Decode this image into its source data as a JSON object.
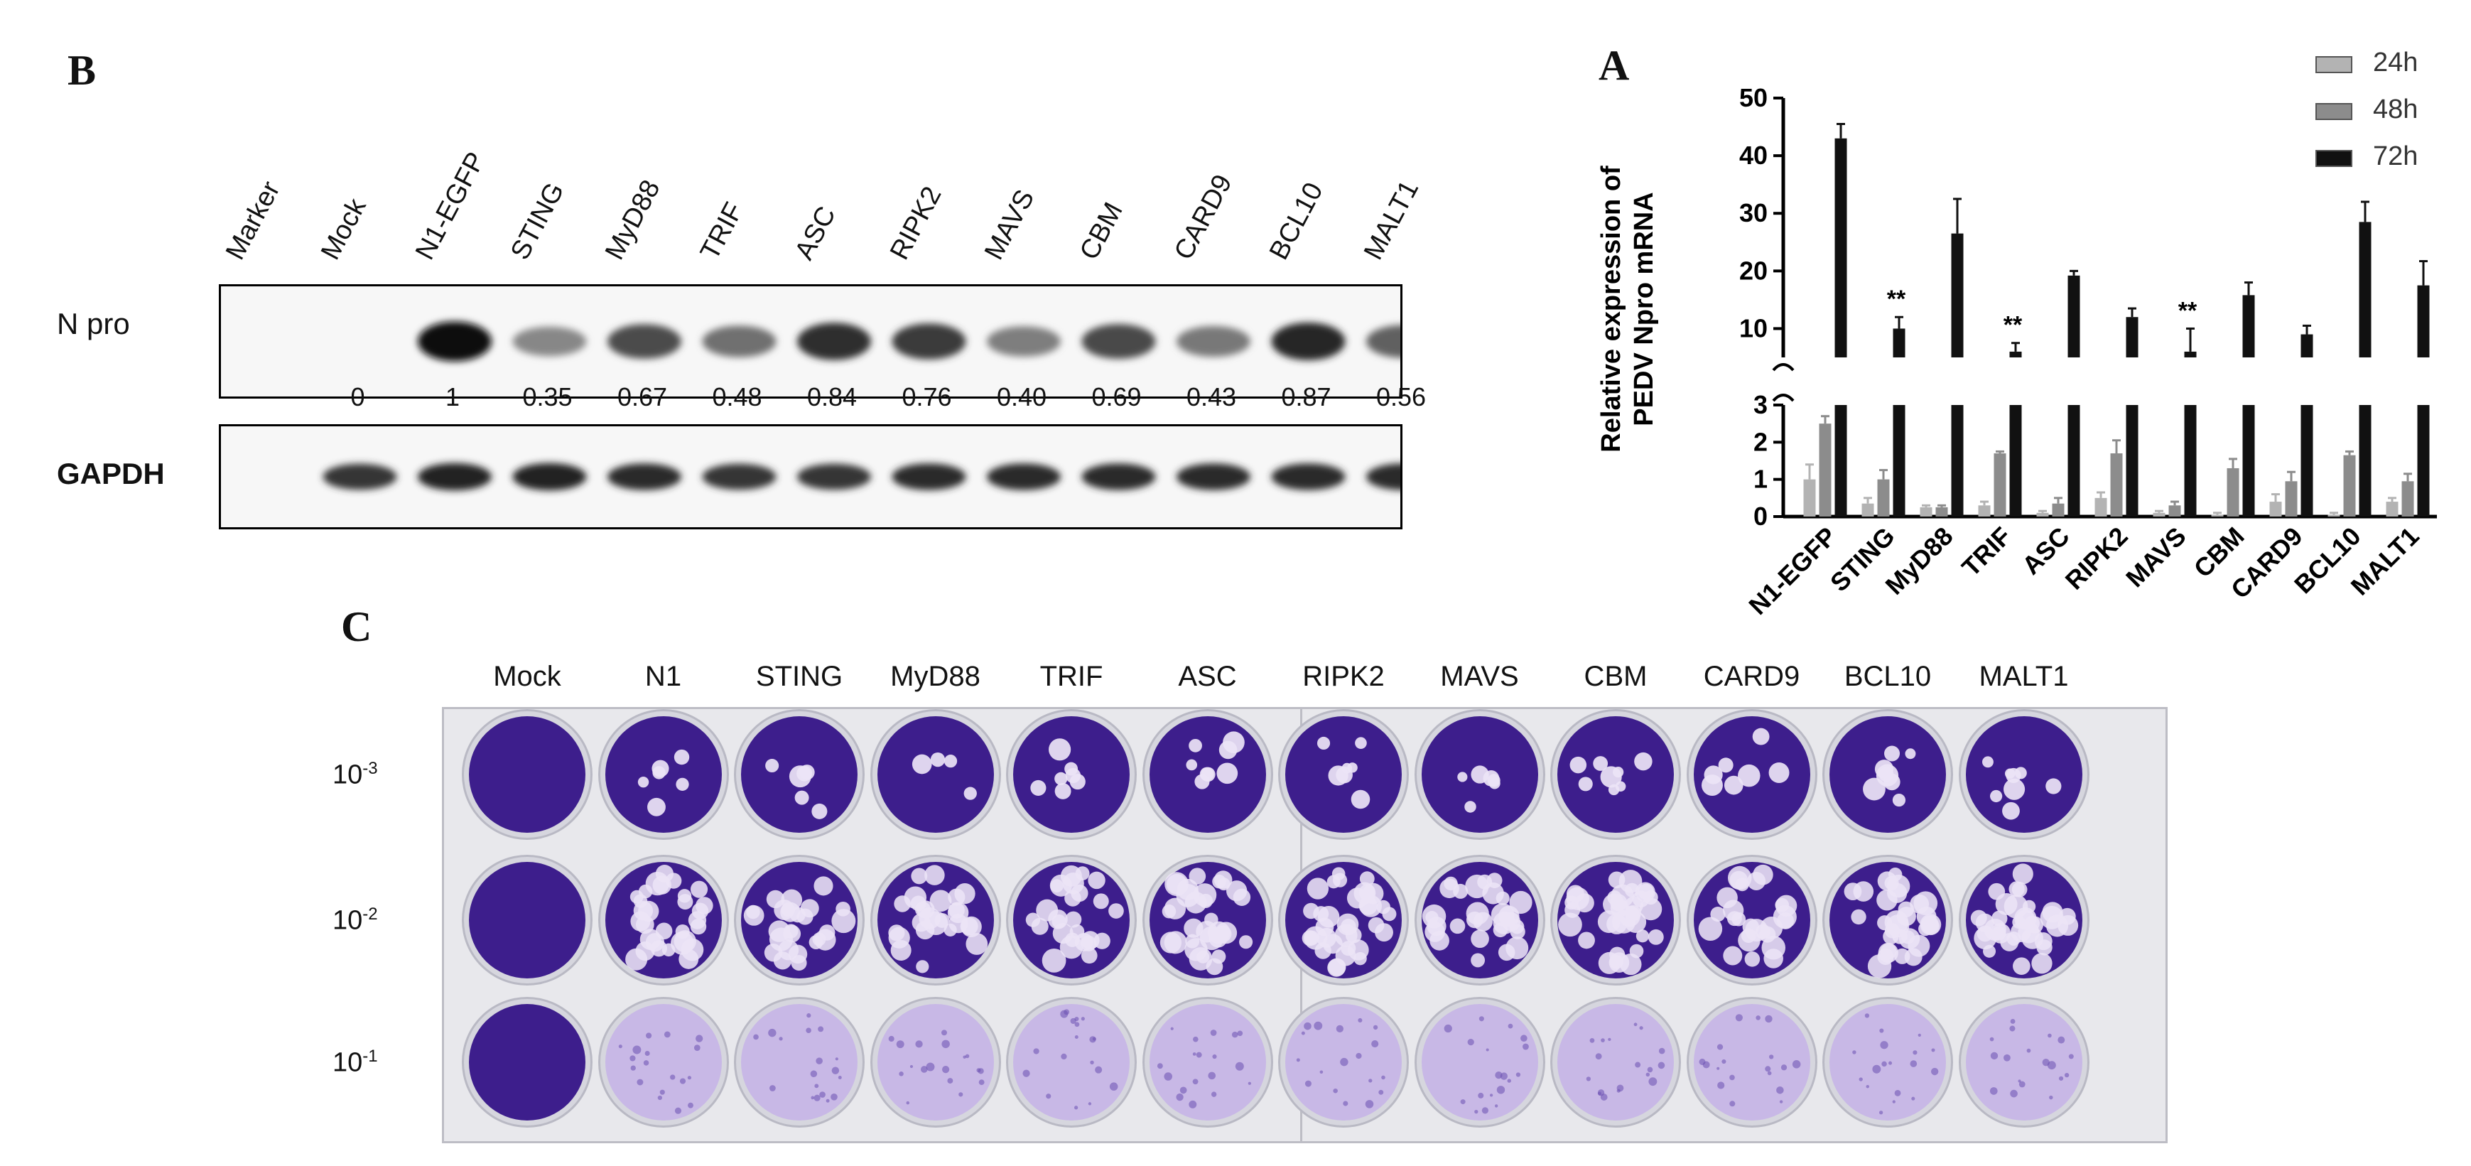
{
  "panel_b": {
    "letter": "B",
    "lanes": [
      "Marker",
      "Mock",
      "N1-EGFP",
      "STING",
      "MyD88",
      "TRIF",
      "ASC",
      "RIPK2",
      "MAVS",
      "CBM",
      "CARD9",
      "BCL10",
      "MALT1"
    ],
    "rows": [
      {
        "label": "N pro",
        "intensities": [
          0,
          0,
          1,
          0.35,
          0.67,
          0.48,
          0.84,
          0.76,
          0.4,
          0.69,
          0.43,
          0.87,
          0.56
        ]
      },
      {
        "label": "GAPDH",
        "intensities": [
          0,
          0.8,
          0.9,
          0.9,
          0.85,
          0.8,
          0.8,
          0.85,
          0.85,
          0.85,
          0.85,
          0.85,
          0.85
        ]
      }
    ],
    "quant": [
      "0",
      "1",
      "0.35",
      "0.67",
      "0.48",
      "0.84",
      "0.76",
      "0.40",
      "0.69",
      "0.43",
      "0.87",
      "0.56"
    ]
  },
  "panel_a": {
    "letter": "A",
    "chart_data": {
      "type": "bar",
      "ylabel_line1": "Relative expression of",
      "ylabel_line2": "PEDV Npro mRNA",
      "categories": [
        "N1-EGFP",
        "STING",
        "MyD88",
        "TRIF",
        "ASC",
        "RIPK2",
        "MAVS",
        "CBM",
        "CARD9",
        "BCL10",
        "MALT1"
      ],
      "series": [
        {
          "name": "24h",
          "color": "#b3b3b3",
          "values": [
            1.0,
            0.35,
            0.25,
            0.3,
            0.1,
            0.5,
            0.1,
            0.05,
            0.4,
            0.05,
            0.4
          ],
          "errors": [
            0.4,
            0.15,
            0.05,
            0.1,
            0.05,
            0.15,
            0.05,
            0.05,
            0.2,
            0.05,
            0.1
          ]
        },
        {
          "name": "48h",
          "color": "#8c8c8c",
          "values": [
            2.5,
            1.0,
            0.25,
            1.7,
            0.35,
            1.7,
            0.3,
            1.3,
            0.95,
            1.65,
            0.95
          ],
          "errors": [
            0.2,
            0.25,
            0.05,
            0.05,
            0.15,
            0.35,
            0.1,
            0.25,
            0.25,
            0.1,
            0.2
          ]
        },
        {
          "name": "72h",
          "color": "#111111",
          "values": [
            43,
            10,
            26.5,
            6,
            19.2,
            12,
            6,
            15.8,
            9,
            28.5,
            17.5
          ],
          "errors": [
            2.5,
            2,
            6,
            1.5,
            0.8,
            1.5,
            4,
            2.2,
            1.5,
            3.5,
            4.2
          ]
        }
      ],
      "annotations": [
        {
          "category": "STING",
          "text": "**"
        },
        {
          "category": "TRIF",
          "text": "**"
        },
        {
          "category": "MAVS",
          "text": "**"
        }
      ],
      "y_lower": {
        "ticks": [
          0,
          1,
          2,
          3
        ],
        "range": [
          0,
          3
        ]
      },
      "y_upper": {
        "ticks": [
          10,
          20,
          30,
          40,
          50
        ],
        "range": [
          5,
          50
        ]
      },
      "y_axis_break": true,
      "legend_position": "top-right"
    }
  },
  "panel_c": {
    "letter": "C",
    "columns": [
      "Mock",
      "N1",
      "STING",
      "MyD88",
      "TRIF",
      "ASC",
      "RIPK2",
      "MAVS",
      "CBM",
      "CARD9",
      "BCL10",
      "MALT1"
    ],
    "dilutions": [
      {
        "base": "10",
        "exp": "-3"
      },
      {
        "base": "10",
        "exp": "-2"
      },
      {
        "base": "10",
        "exp": "-1"
      }
    ],
    "colors": {
      "stain": "#3d1e8c",
      "light_stain": "#c8b8e6",
      "plaque": "#ece4f6"
    }
  }
}
